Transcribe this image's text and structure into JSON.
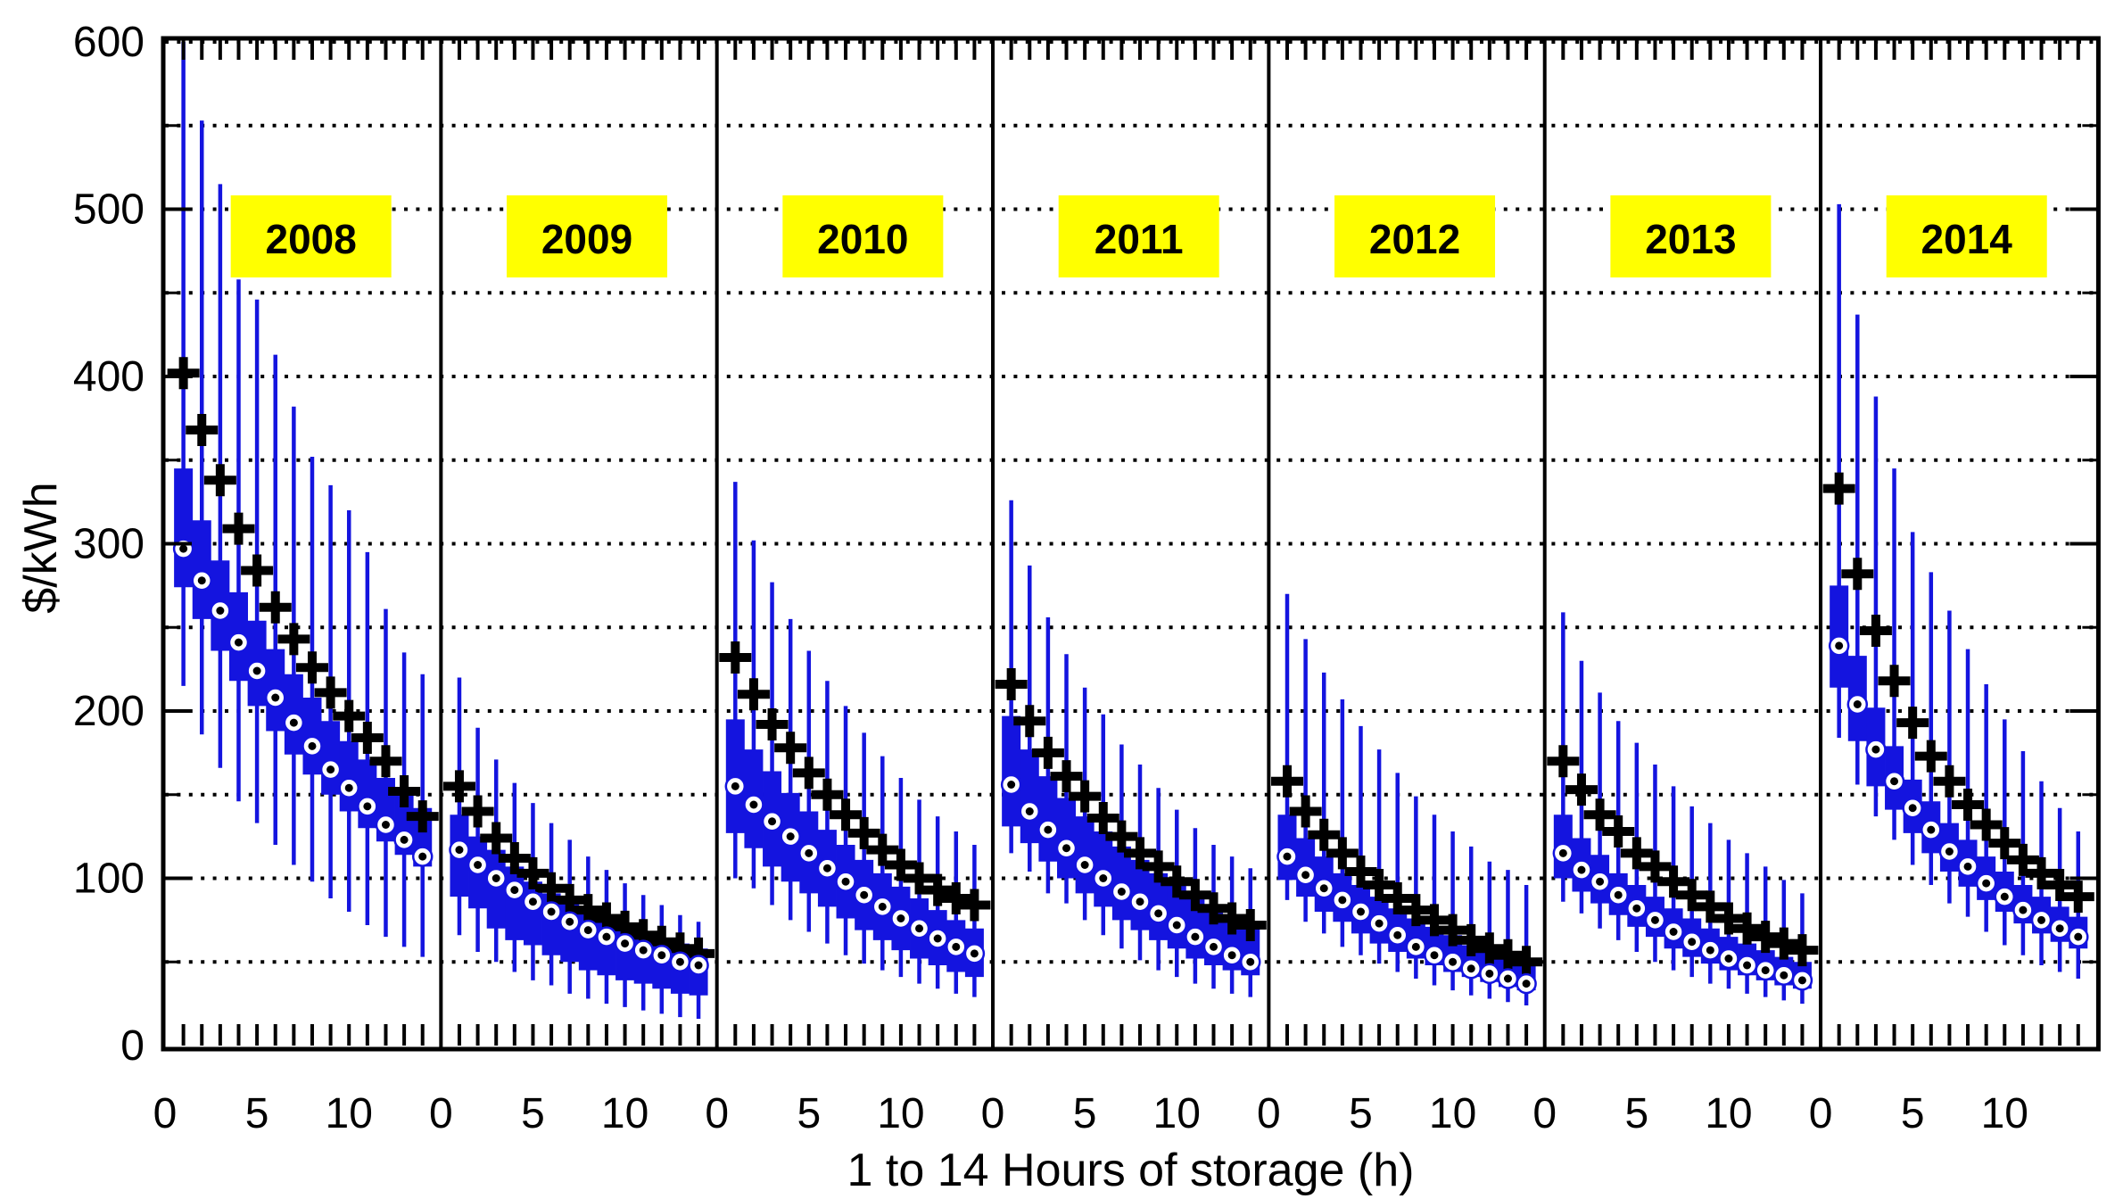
{
  "chart_data": {
    "type": "grouped_boxplot",
    "ylabel": "$/kWh",
    "xlabel": "1 to 14 Hours of storage (h)",
    "ylim": [
      0,
      600
    ],
    "y_major_ticks": [
      0,
      100,
      200,
      300,
      400,
      500,
      600
    ],
    "y_grid_step": 50,
    "x_units_per_panel": 15,
    "hours": [
      1,
      2,
      3,
      4,
      5,
      6,
      7,
      8,
      9,
      10,
      11,
      12,
      13,
      14
    ],
    "x_tick_labels_per_panel": [
      {
        "label": "0",
        "h": 0
      },
      {
        "label": "5",
        "h": 5
      },
      {
        "label": "10",
        "h": 10
      }
    ],
    "grid_on": true,
    "legend_position": "none",
    "colors": {
      "box_fill": "#1414DF",
      "whisker": "#1414DF",
      "median_ring": "#ffffff",
      "median_dot": "#000000",
      "plus_marker": "#000000",
      "year_label_bg": "#FFFF00",
      "axis": "#000000",
      "grid": "#000000"
    },
    "panels": [
      {
        "year": "2008",
        "whisker_low": [
          215,
          186,
          166,
          146,
          133,
          120,
          108,
          98,
          88,
          80,
          72,
          65,
          59,
          53
        ],
        "q1": [
          274,
          255,
          236,
          218,
          203,
          188,
          174,
          162,
          150,
          140,
          130,
          122,
          114,
          107
        ],
        "median": [
          297,
          278,
          260,
          241,
          224,
          208,
          193,
          179,
          165,
          154,
          143,
          132,
          123,
          113
        ],
        "q3": [
          345,
          314,
          290,
          271,
          254,
          237,
          222,
          208,
          194,
          182,
          171,
          160,
          151,
          142
        ],
        "whisker_high": [
          600,
          553,
          515,
          458,
          446,
          413,
          382,
          352,
          335,
          320,
          295,
          261,
          235,
          222
        ],
        "plus": [
          402,
          368,
          338,
          309,
          284,
          262,
          243,
          226,
          211,
          197,
          184,
          170,
          152,
          137
        ]
      },
      {
        "year": "2009",
        "whisker_low": [
          66,
          56,
          50,
          44,
          39,
          36,
          31,
          28,
          25,
          23,
          21,
          19,
          17,
          16
        ],
        "q1": [
          89,
          82,
          70,
          63,
          60,
          54,
          50,
          45,
          42,
          39,
          37,
          34,
          31,
          30
        ],
        "median": [
          117,
          108,
          100,
          93,
          86,
          80,
          74,
          69,
          65,
          61,
          57,
          54,
          50,
          48
        ],
        "q3": [
          138,
          125,
          117,
          107,
          98,
          91,
          85,
          80,
          75,
          72,
          68,
          64,
          61,
          58
        ],
        "whisker_high": [
          220,
          190,
          171,
          157,
          145,
          133,
          123,
          113,
          105,
          97,
          90,
          84,
          78,
          74
        ],
        "plus": [
          155,
          140,
          124,
          112,
          103,
          94,
          87,
          81,
          76,
          71,
          66,
          62,
          58,
          55
        ]
      },
      {
        "year": "2010",
        "whisker_low": [
          100,
          94,
          84,
          75,
          68,
          61,
          54,
          49,
          45,
          41,
          37,
          34,
          31,
          29
        ],
        "q1": [
          127,
          118,
          107,
          98,
          91,
          83,
          76,
          69,
          63,
          57,
          52,
          48,
          44,
          41
        ],
        "median": [
          155,
          144,
          134,
          125,
          115,
          106,
          98,
          90,
          83,
          76,
          70,
          64,
          59,
          55
        ],
        "q3": [
          195,
          177,
          164,
          151,
          140,
          129,
          120,
          111,
          103,
          95,
          88,
          81,
          75,
          70
        ],
        "whisker_high": [
          337,
          302,
          277,
          255,
          236,
          218,
          203,
          187,
          173,
          160,
          147,
          137,
          128,
          120
        ],
        "plus": [
          232,
          210,
          192,
          178,
          163,
          150,
          138,
          127,
          117,
          108,
          100,
          93,
          88,
          84
        ]
      },
      {
        "year": "2011",
        "whisker_low": [
          115,
          104,
          91,
          85,
          75,
          66,
          58,
          51,
          45,
          41,
          37,
          34,
          31,
          29
        ],
        "q1": [
          131,
          121,
          110,
          100,
          91,
          83,
          75,
          69,
          63,
          58,
          52,
          48,
          45,
          42
        ],
        "median": [
          156,
          140,
          129,
          118,
          108,
          100,
          92,
          86,
          79,
          72,
          65,
          59,
          54,
          50
        ],
        "q3": [
          197,
          177,
          161,
          148,
          137,
          128,
          119,
          111,
          103,
          96,
          89,
          83,
          77,
          72
        ],
        "whisker_high": [
          326,
          287,
          256,
          234,
          214,
          198,
          180,
          168,
          154,
          141,
          130,
          120,
          113,
          106
        ],
        "plus": [
          216,
          194,
          175,
          161,
          149,
          136,
          125,
          115,
          107,
          98,
          90,
          82,
          76,
          72
        ]
      },
      {
        "year": "2012",
        "whisker_low": [
          87,
          74,
          67,
          59,
          54,
          49,
          44,
          40,
          36,
          33,
          30,
          28,
          26,
          24
        ],
        "q1": [
          99,
          89,
          80,
          74,
          67,
          61,
          56,
          52,
          48,
          44,
          41,
          38,
          35,
          33
        ],
        "median": [
          113,
          102,
          94,
          87,
          80,
          73,
          66,
          59,
          54,
          50,
          46,
          43,
          40,
          37
        ],
        "q3": [
          138,
          124,
          113,
          103,
          96,
          89,
          82,
          76,
          71,
          66,
          60,
          56,
          52,
          49
        ],
        "whisker_high": [
          270,
          243,
          223,
          207,
          191,
          177,
          163,
          149,
          138,
          128,
          119,
          110,
          105,
          96
        ],
        "plus": [
          158,
          140,
          126,
          115,
          104,
          96,
          88,
          81,
          75,
          69,
          63,
          58,
          54,
          50
        ]
      },
      {
        "year": "2013",
        "whisker_low": [
          86,
          79,
          70,
          63,
          56,
          50,
          45,
          41,
          37,
          34,
          31,
          29,
          27,
          25
        ],
        "q1": [
          100,
          92,
          85,
          78,
          71,
          65,
          58,
          53,
          49,
          45,
          42,
          39,
          36,
          34
        ],
        "median": [
          115,
          105,
          98,
          90,
          82,
          75,
          68,
          62,
          57,
          52,
          48,
          45,
          42,
          39
        ],
        "q3": [
          138,
          124,
          114,
          103,
          96,
          89,
          82,
          76,
          70,
          65,
          61,
          57,
          53,
          50
        ],
        "whisker_high": [
          259,
          230,
          211,
          194,
          181,
          168,
          155,
          143,
          133,
          123,
          115,
          107,
          99,
          91
        ],
        "plus": [
          170,
          153,
          138,
          128,
          115,
          107,
          98,
          90,
          83,
          76,
          70,
          65,
          61,
          57
        ]
      },
      {
        "year": "2014",
        "whisker_low": [
          184,
          156,
          137,
          123,
          108,
          96,
          85,
          77,
          68,
          60,
          54,
          48,
          44,
          40
        ],
        "q1": [
          214,
          182,
          155,
          141,
          127,
          115,
          104,
          95,
          87,
          80,
          73,
          67,
          62,
          58
        ],
        "median": [
          239,
          204,
          177,
          158,
          142,
          129,
          116,
          107,
          97,
          89,
          81,
          75,
          70,
          65
        ],
        "q3": [
          275,
          233,
          202,
          179,
          159,
          146,
          133,
          123,
          113,
          104,
          96,
          89,
          83,
          77
        ],
        "whisker_high": [
          503,
          437,
          388,
          345,
          307,
          283,
          260,
          237,
          216,
          195,
          176,
          158,
          142,
          128
        ],
        "plus": [
          333,
          282,
          248,
          218,
          193,
          173,
          158,
          144,
          132,
          121,
          111,
          103,
          96,
          89
        ]
      }
    ]
  }
}
